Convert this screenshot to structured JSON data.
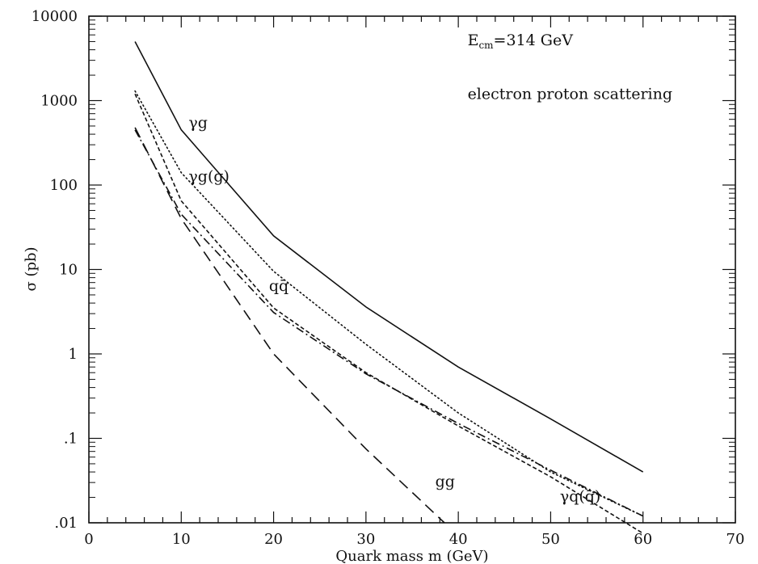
{
  "chart_data": {
    "type": "line",
    "title": "",
    "xlabel": "Quark mass m (GeV)",
    "ylabel": "σ (pb)",
    "xlim": [
      0,
      70
    ],
    "ylim": [
      0.01,
      10000
    ],
    "yscale": "log",
    "grid": false,
    "x_ticks": [
      0,
      10,
      20,
      30,
      40,
      50,
      60,
      70
    ],
    "x_tick_labels": [
      "0",
      "10",
      "20",
      "30",
      "40",
      "50",
      "60",
      "70"
    ],
    "y_ticks": [
      0.01,
      0.1,
      1,
      10,
      100,
      1000,
      10000
    ],
    "y_tick_labels": [
      ".01",
      ".1",
      "1",
      "10",
      "100",
      "1000",
      "10000"
    ],
    "annotations": [
      {
        "id": "ecm",
        "text": "E",
        "sub": "cm",
        "rest": "=314 GeV",
        "x": 41,
        "y": 4500
      },
      {
        "id": "process",
        "text": "electron proton scattering",
        "x": 41,
        "y": 1050
      }
    ],
    "series": [
      {
        "name": "γg",
        "style": "solid",
        "x": [
          5,
          10,
          20,
          30,
          40,
          50,
          60
        ],
        "y": [
          5000,
          450,
          25,
          3.6,
          0.7,
          0.17,
          0.04
        ],
        "label_pos": {
          "x": 10.8,
          "y": 480
        }
      },
      {
        "name": "γg(g)",
        "style": "dotted",
        "x": [
          5,
          10,
          20,
          30,
          40,
          50,
          60
        ],
        "y": [
          1300,
          140,
          9.5,
          1.3,
          0.2,
          0.04,
          0.012
        ],
        "label_pos": {
          "x": 10.8,
          "y": 110
        }
      },
      {
        "name": "qq̄",
        "style": "short-dash",
        "x": [
          5,
          10,
          20,
          30,
          40,
          50,
          60
        ],
        "y": [
          1200,
          65,
          3.5,
          0.6,
          0.14,
          0.035,
          0.0075
        ],
        "label_pos": {
          "x": 19.5,
          "y": 5.6
        }
      },
      {
        "name": "γq(q̄)",
        "style": "dash-dot",
        "x": [
          5,
          10,
          20,
          30,
          40,
          50,
          60
        ],
        "y": [
          450,
          45,
          3.1,
          0.58,
          0.15,
          0.042,
          0.012
        ],
        "label_pos": {
          "x": 51,
          "y": 0.018
        }
      },
      {
        "name": "gg",
        "style": "long-dash",
        "x": [
          5,
          10,
          20,
          30,
          38.5
        ],
        "y": [
          480,
          40,
          1.0,
          0.075,
          0.01
        ],
        "label_pos": {
          "x": 37.5,
          "y": 0.027
        }
      }
    ]
  }
}
